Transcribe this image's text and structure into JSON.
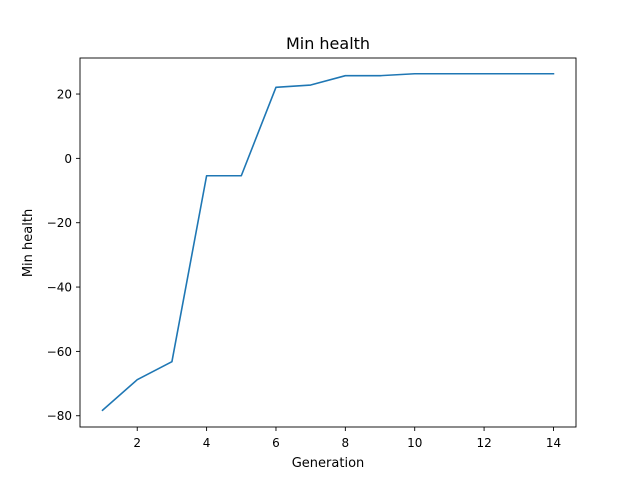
{
  "chart_data": {
    "type": "line",
    "title": "Min health",
    "xlabel": "Generation",
    "ylabel": "Min health",
    "xlim": [
      0.35,
      14.65
    ],
    "ylim": [
      -83.5,
      31.2
    ],
    "xticks": [
      2,
      4,
      6,
      8,
      10,
      12,
      14
    ],
    "yticks": [
      -80,
      -60,
      -40,
      -20,
      0,
      20
    ],
    "grid": false,
    "series": [
      {
        "color": "#1f77b4",
        "x": [
          1,
          2,
          3,
          4,
          5,
          6,
          7,
          8,
          9,
          10,
          11,
          12,
          13,
          14
        ],
        "y": [
          -78.3,
          -68.8,
          -63.2,
          -5.4,
          -5.4,
          22.1,
          22.8,
          25.7,
          25.7,
          26.3,
          26.3,
          26.3,
          26.3,
          26.3
        ]
      }
    ]
  }
}
